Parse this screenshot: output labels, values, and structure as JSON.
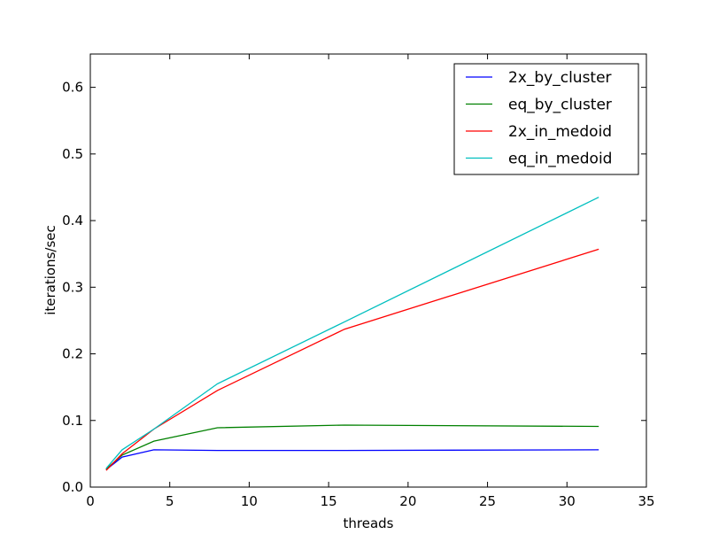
{
  "chart_data": {
    "type": "line",
    "xlabel": "threads",
    "ylabel": "iterations/sec",
    "xlim": [
      0,
      35
    ],
    "ylim": [
      0.0,
      0.65
    ],
    "xticks": [
      0,
      5,
      10,
      15,
      20,
      25,
      30,
      35
    ],
    "yticks": [
      0.0,
      0.1,
      0.2,
      0.3,
      0.4,
      0.5,
      0.6
    ],
    "xtick_labels": [
      "0",
      "5",
      "10",
      "15",
      "20",
      "25",
      "30",
      "35"
    ],
    "ytick_labels": [
      "0.0",
      "0.1",
      "0.2",
      "0.3",
      "0.4",
      "0.5",
      "0.6"
    ],
    "grid": false,
    "legend_position": "top-right",
    "x": [
      1,
      2,
      4,
      8,
      16,
      32
    ],
    "series": [
      {
        "name": "2x_by_cluster",
        "color": "#0000ff",
        "values": [
          0.026,
          0.045,
          0.056,
          0.055,
          0.055,
          0.056
        ]
      },
      {
        "name": "eq_by_cluster",
        "color": "#008000",
        "values": [
          0.027,
          0.048,
          0.069,
          0.089,
          0.093,
          0.091
        ]
      },
      {
        "name": "2x_in_medoid",
        "color": "#ff0000",
        "values": [
          0.025,
          0.05,
          0.087,
          0.145,
          0.237,
          0.357
        ]
      },
      {
        "name": "eq_in_medoid",
        "color": "#00bfbf",
        "values": [
          0.028,
          0.056,
          0.087,
          0.155,
          0.248,
          0.435
        ]
      }
    ]
  }
}
